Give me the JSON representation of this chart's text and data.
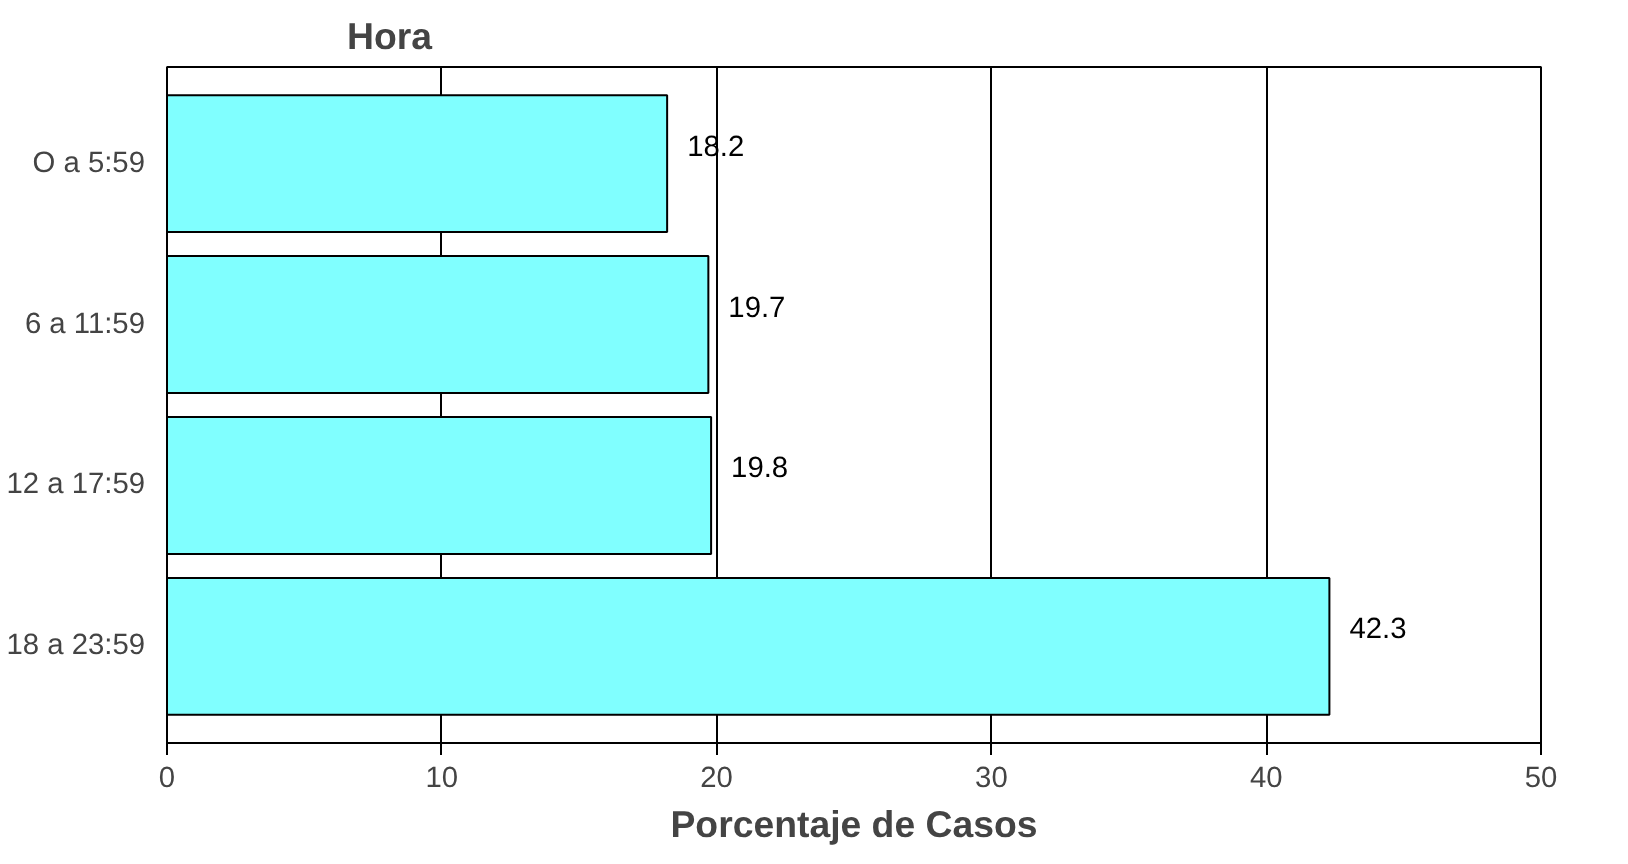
{
  "chart_data": {
    "type": "bar",
    "orientation": "horizontal",
    "ylabel": "Hora",
    "xlabel": "Porcentaje de Casos",
    "categories": [
      "O a 5:59",
      "6 a 11:59",
      "12 a 17:59",
      "18 a 23:59"
    ],
    "values": [
      18.2,
      19.7,
      19.8,
      42.3
    ],
    "color": "#80ffff",
    "xlim": [
      0,
      50
    ],
    "xticks": [
      0,
      10,
      20,
      30,
      40,
      50
    ],
    "grid": "x",
    "data_labels": true
  }
}
